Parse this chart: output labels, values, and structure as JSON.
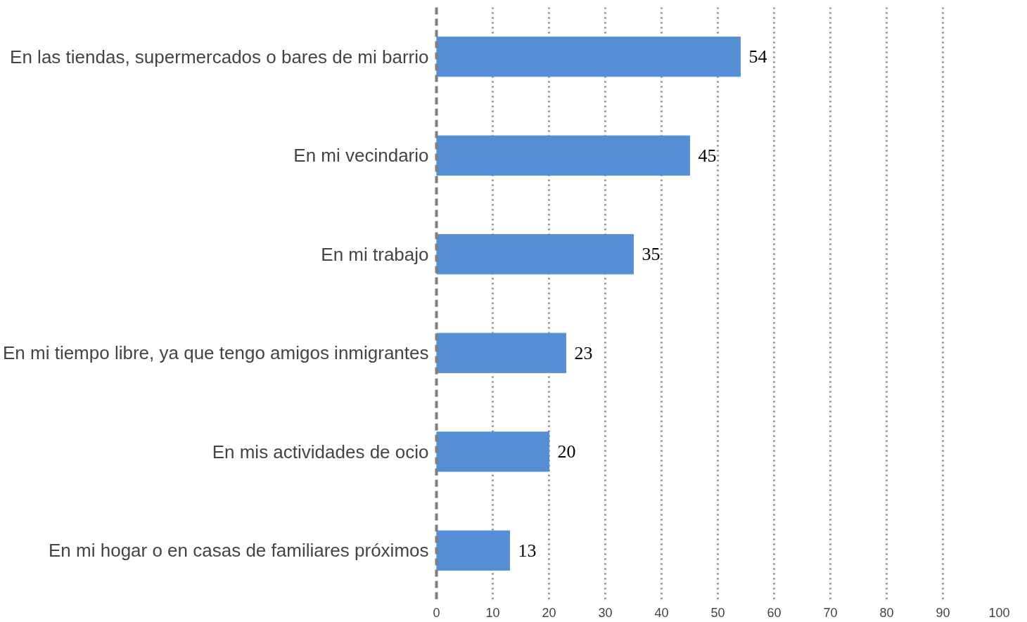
{
  "chart_data": {
    "type": "bar",
    "orientation": "horizontal",
    "categories": [
      "En las tiendas, supermercados o bares de mi barrio",
      "En mi vecindario",
      "En mi trabajo",
      "En mi tiempo libre, ya que tengo amigos inmigrantes",
      "En mis actividades de ocio",
      "En mi hogar o en casas de familiares próximos"
    ],
    "values": [
      54,
      45,
      35,
      23,
      20,
      13
    ],
    "color": "#558ed5",
    "xlim": [
      0,
      100
    ],
    "xticks": [
      0,
      10,
      20,
      30,
      40,
      50,
      60,
      70,
      80,
      90,
      100
    ],
    "grid": "x",
    "data_labels": true
  }
}
